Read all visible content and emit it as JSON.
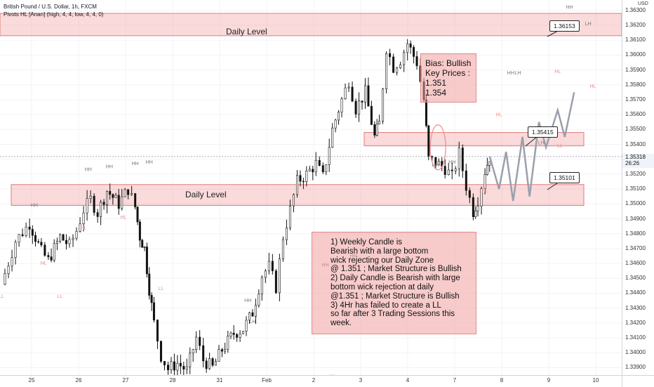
{
  "header": {
    "title": "British Pound / U.S. Dollar, 1h, FXCM",
    "indicator": "Pivots HL [Anan] (high, 4, 4, low, 4, 4, 0)"
  },
  "currency": "USD",
  "last_price": "1.35318",
  "countdown": "26:26",
  "zones": [
    {
      "label": "Daily Level",
      "top": 1.3628,
      "bottom": 1.3613
    },
    {
      "label": "Daily Level",
      "top": 1.3513,
      "bottom": 1.3499
    },
    {
      "label": "",
      "top": 1.3548,
      "bottom": 1.3539
    }
  ],
  "bias_box": {
    "lines": [
      "Bias: Bullish",
      "Key Prices :",
      "1.351",
      "1.354"
    ]
  },
  "analysis_box": {
    "lines": [
      "1) Weekly Candle is",
      "Bearish with a large bottom",
      "wick rejecting our Daily Zone",
      "@ 1.351 ; Market Structure is Bullish",
      "2) Daily Candle is Bearish with large",
      "bottom wick rejection at daily",
      "@1.351 ; Market Structure is Bullish",
      "3) 4Hr has failed to create a LL",
      "so far after 3 Trading Sessions this",
      "week."
    ]
  },
  "callouts": [
    "1.36153",
    "1.35415",
    "1.35101"
  ],
  "chart_data": {
    "type": "candlestick",
    "title": "British Pound / U.S. Dollar, 1h, FXCM",
    "ylim": [
      1.3385,
      1.3637
    ],
    "y_ticks": [
      "1.36300",
      "1.36200",
      "1.36100",
      "1.36000",
      "1.35900",
      "1.35800",
      "1.35700",
      "1.35600",
      "1.35500",
      "1.35400",
      "1.35300",
      "1.35200",
      "1.35100",
      "1.35000",
      "1.34900",
      "1.34800",
      "1.34700",
      "1.34600",
      "1.34500",
      "1.34400",
      "1.34300",
      "1.34200",
      "1.34100",
      "1.34000",
      "1.33900"
    ],
    "x_ticks": [
      "25",
      "26",
      "27",
      "28",
      "31",
      "Feb",
      "2",
      "3",
      "4",
      "7",
      "8",
      "9",
      "10"
    ],
    "price_path": [
      [
        0,
        1.3446
      ],
      [
        0.3,
        1.3475
      ],
      [
        0.6,
        1.3487
      ],
      [
        0.85,
        1.3468
      ],
      [
        1.0,
        1.3462
      ],
      [
        1.25,
        1.3478
      ],
      [
        1.45,
        1.3472
      ],
      [
        1.6,
        1.3482
      ],
      [
        1.75,
        1.3496
      ],
      [
        1.9,
        1.3503
      ],
      [
        2.05,
        1.3494
      ],
      [
        2.25,
        1.3509
      ],
      [
        2.5,
        1.35
      ],
      [
        2.7,
        1.351
      ],
      [
        2.85,
        1.3498
      ],
      [
        2.95,
        1.3478
      ],
      [
        3.05,
        1.347
      ],
      [
        3.15,
        1.3443
      ],
      [
        3.25,
        1.342
      ],
      [
        3.4,
        1.3398
      ],
      [
        3.55,
        1.3389
      ],
      [
        3.75,
        1.3393
      ],
      [
        3.95,
        1.3388
      ],
      [
        4.15,
        1.341
      ],
      [
        4.3,
        1.3395
      ],
      [
        4.5,
        1.339
      ],
      [
        4.7,
        1.3402
      ],
      [
        4.95,
        1.3413
      ],
      [
        5.15,
        1.3416
      ],
      [
        5.35,
        1.3427
      ],
      [
        5.55,
        1.3452
      ],
      [
        5.7,
        1.3458
      ],
      [
        5.85,
        1.3444
      ],
      [
        6.0,
        1.3478
      ],
      [
        6.15,
        1.3496
      ],
      [
        6.3,
        1.3515
      ],
      [
        6.5,
        1.352
      ],
      [
        6.7,
        1.3527
      ],
      [
        6.85,
        1.3518
      ],
      [
        7.05,
        1.355
      ],
      [
        7.25,
        1.357
      ],
      [
        7.4,
        1.3583
      ],
      [
        7.55,
        1.3564
      ],
      [
        7.75,
        1.3575
      ],
      [
        7.95,
        1.3545
      ],
      [
        8.05,
        1.3554
      ],
      [
        8.2,
        1.3605
      ],
      [
        8.35,
        1.3592
      ],
      [
        8.5,
        1.3597
      ],
      [
        8.65,
        1.3608
      ],
      [
        8.85,
        1.3595
      ],
      [
        9.0,
        1.357
      ],
      [
        9.1,
        1.353
      ],
      [
        9.25,
        1.3528
      ],
      [
        9.45,
        1.3524
      ],
      [
        9.6,
        1.3518
      ],
      [
        9.75,
        1.3534
      ],
      [
        9.9,
        1.3512
      ],
      [
        10.05,
        1.3495
      ],
      [
        10.15,
        1.3503
      ],
      [
        10.3,
        1.3522
      ],
      [
        10.4,
        1.35318
      ]
    ],
    "projection": [
      [
        10.4,
        1.3532
      ],
      [
        10.6,
        1.351
      ],
      [
        10.75,
        1.3535
      ],
      [
        10.9,
        1.3502
      ],
      [
        11.1,
        1.3545
      ],
      [
        11.25,
        1.3505
      ],
      [
        11.45,
        1.3555
      ],
      [
        11.6,
        1.3538
      ],
      [
        11.85,
        1.3563
      ],
      [
        12.0,
        1.3545
      ],
      [
        12.2,
        1.3575
      ]
    ],
    "pivots": [
      {
        "label": "HH",
        "x": 1.85,
        "y": 1.3522
      },
      {
        "label": "HH",
        "x": 2.3,
        "y": 1.3524
      },
      {
        "label": "HH",
        "x": 2.85,
        "y": 1.3526
      },
      {
        "label": "HH",
        "x": 3.15,
        "y": 1.3527
      },
      {
        "label": "HH",
        "x": 0.7,
        "y": 1.3498
      },
      {
        "label": "HL",
        "x": 0.9,
        "y": 1.3459
      },
      {
        "label": "LL",
        "x": 1.25,
        "y": 1.3437
      },
      {
        "label": "HL",
        "x": 1.75,
        "y": 1.3483
      },
      {
        "label": "HL",
        "x": 2.6,
        "y": 1.349
      },
      {
        "label": "LL",
        "x": 3.4,
        "y": 1.3442
      },
      {
        "label": "LL",
        "x": 0,
        "y": 1.3437
      },
      {
        "label": "HH",
        "x": 5.25,
        "y": 1.3434
      },
      {
        "label": "LH",
        "x": 5.35,
        "y": 1.342
      },
      {
        "label": "HH",
        "x": 6.9,
        "y": 1.3458
      },
      {
        "label": "HH",
        "x": 7.5,
        "y": 1.3464
      },
      {
        "label": "HL",
        "x": 7.05,
        "y": 1.3383
      },
      {
        "label": "HH",
        "x": 9.25,
        "y": 1.3525
      },
      {
        "label": "HH",
        "x": 9.6,
        "y": 1.3527
      },
      {
        "label": "HL",
        "x": 10.3,
        "y": 1.3508
      },
      {
        "label": "HH",
        "x": 10.85,
        "y": 1.3587
      },
      {
        "label": "LH",
        "x": 11.0,
        "y": 1.3587
      },
      {
        "label": "HL",
        "x": 10.6,
        "y": 1.3559
      },
      {
        "label": "HL",
        "x": 11.3,
        "y": 1.3548
      },
      {
        "label": "LH",
        "x": 11.5,
        "y": 1.354
      },
      {
        "label": "HH",
        "x": 12.1,
        "y": 1.3631
      },
      {
        "label": "LH",
        "x": 12.5,
        "y": 1.362
      },
      {
        "label": "HL",
        "x": 12.6,
        "y": 1.3578
      },
      {
        "label": "HL",
        "x": 11.85,
        "y": 1.3588
      },
      {
        "label": "LL",
        "x": 11.9,
        "y": 1.3538
      },
      {
        "label": "LL",
        "x": 13.6,
        "y": 1.3499
      },
      {
        "label": "LH",
        "x": 14.6,
        "y": 1.3552
      },
      {
        "label": "LL",
        "x": 14.4,
        "y": 1.351
      },
      {
        "label": "LL",
        "x": 14.95,
        "y": 1.3483
      }
    ]
  }
}
